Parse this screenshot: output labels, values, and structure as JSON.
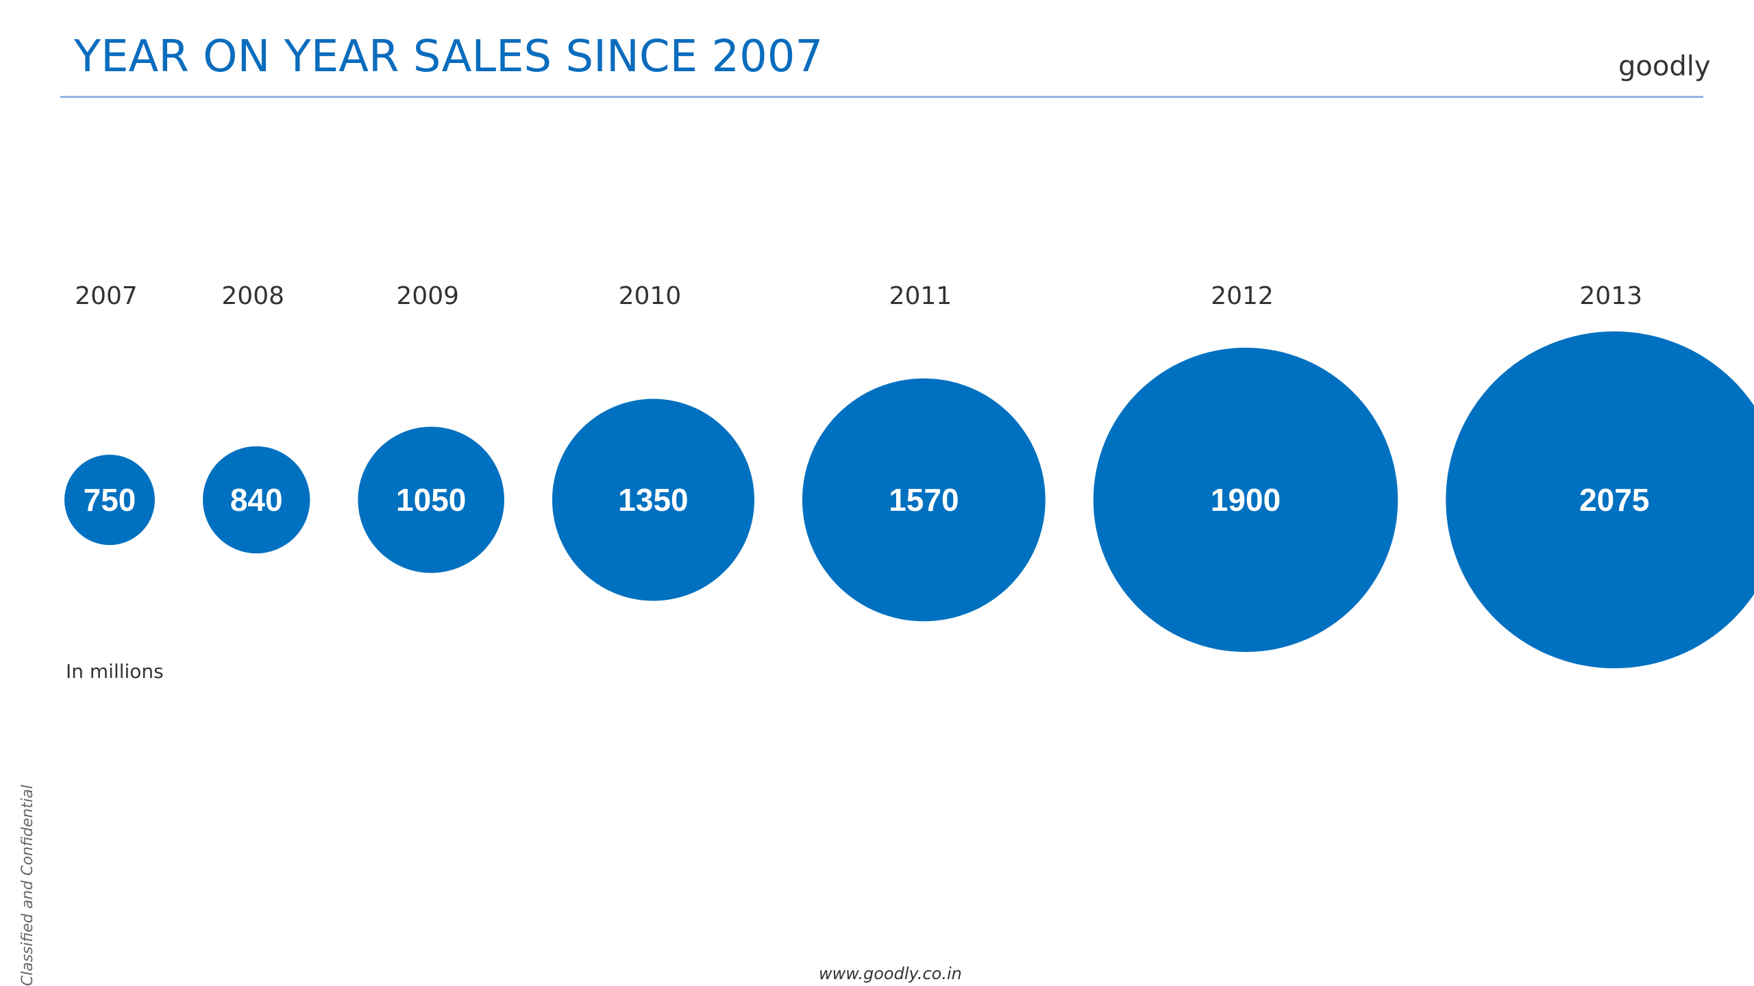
{
  "header": {
    "title": "YEAR ON YEAR SALES SINCE 2007",
    "logo_text": "goodly"
  },
  "chart_data": {
    "type": "bubble",
    "title": "YEAR ON YEAR SALES SINCE 2007",
    "unit_note": "In millions",
    "categories": [
      "2007",
      "2008",
      "2009",
      "2010",
      "2011",
      "2012",
      "2013"
    ],
    "values": [
      750,
      840,
      1050,
      1350,
      1570,
      1900,
      2075
    ],
    "color": "#0070c0",
    "label_color": "#ffffff"
  },
  "footer": {
    "url": "www.goodly.co.in",
    "side_note": "Classified and Confidential"
  }
}
